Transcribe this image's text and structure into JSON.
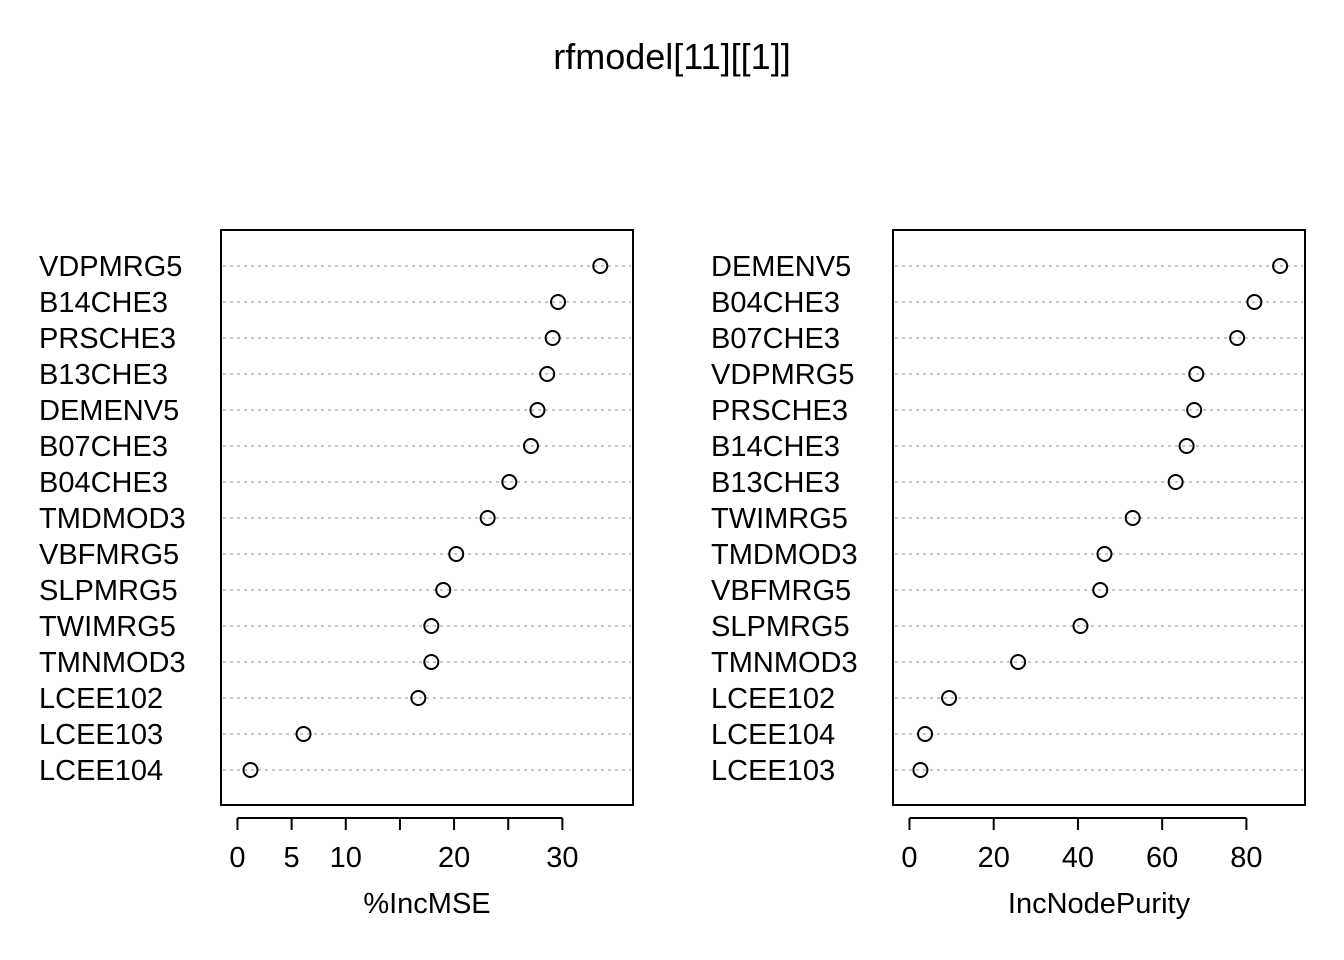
{
  "chart_data": [
    {
      "type": "scatter",
      "title": "rfmodel[11][[1]]",
      "xlabel": "%IncMSE",
      "ylabel": "",
      "xlim": [
        0,
        35
      ],
      "xticks": [
        0,
        5,
        10,
        15,
        20,
        25,
        30
      ],
      "xtick_labels": [
        "0",
        "5",
        "10",
        "",
        "20",
        "",
        "30"
      ],
      "grid": "dotted horizontal guides",
      "categories": [
        "VDPMRG5",
        "B14CHE3",
        "PRSCHE3",
        "B13CHE3",
        "DEMENV5",
        "B07CHE3",
        "B04CHE3",
        "TMDMOD3",
        "VBFMRG5",
        "SLPMRG5",
        "TWIMRG5",
        "TMNMOD3",
        "LCEE102",
        "LCEE103",
        "LCEE104"
      ],
      "values": [
        33.5,
        29.6,
        29.1,
        28.6,
        27.7,
        27.1,
        25.1,
        23.1,
        20.2,
        19.0,
        17.9,
        17.9,
        16.7,
        6.1,
        1.2
      ]
    },
    {
      "type": "scatter",
      "title": "",
      "xlabel": "IncNodePurity",
      "ylabel": "",
      "xlim": [
        0,
        90
      ],
      "xticks": [
        0,
        20,
        40,
        60,
        80
      ],
      "xtick_labels": [
        "0",
        "20",
        "40",
        "60",
        "80"
      ],
      "grid": "dotted horizontal guides",
      "categories": [
        "DEMENV5",
        "B04CHE3",
        "B07CHE3",
        "VDPMRG5",
        "PRSCHE3",
        "B14CHE3",
        "B13CHE3",
        "TWIMRG5",
        "TMDMOD3",
        "VBFMRG5",
        "SLPMRG5",
        "TMNMOD3",
        "LCEE102",
        "LCEE104",
        "LCEE103"
      ],
      "values": [
        88.0,
        81.9,
        77.8,
        68.1,
        67.6,
        65.8,
        63.2,
        53.0,
        46.3,
        45.3,
        40.6,
        25.8,
        9.4,
        3.7,
        2.6
      ]
    }
  ]
}
